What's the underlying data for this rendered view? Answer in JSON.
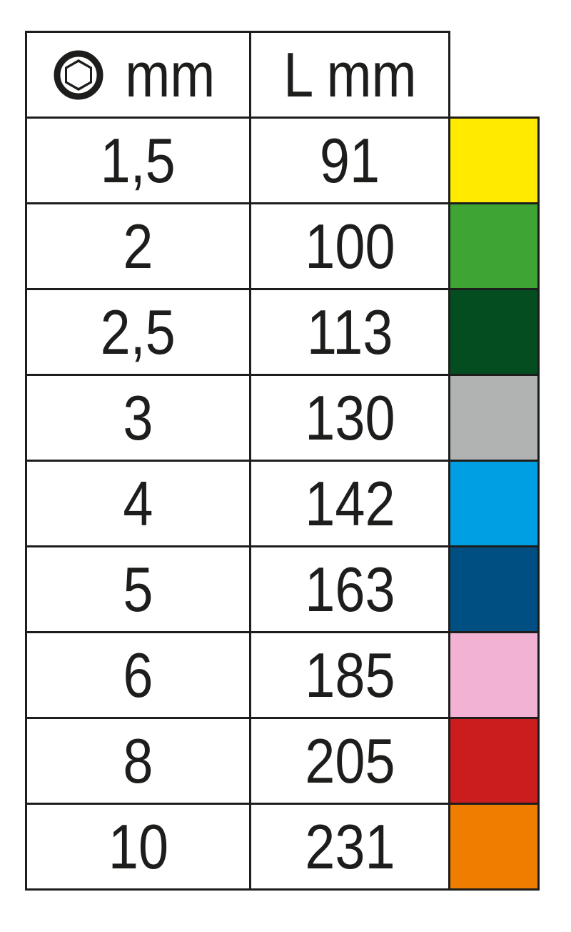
{
  "header": {
    "size_icon": "hexagon-socket-icon",
    "size_label": "mm",
    "length_label": "L mm"
  },
  "rows": [
    {
      "size": "1,5",
      "length": "91",
      "color": "#ffea00"
    },
    {
      "size": "2",
      "length": "100",
      "color": "#3ea535"
    },
    {
      "size": "2,5",
      "length": "113",
      "color": "#034d21"
    },
    {
      "size": "3",
      "length": "130",
      "color": "#b1b3b2"
    },
    {
      "size": "4",
      "length": "142",
      "color": "#009fe3"
    },
    {
      "size": "5",
      "length": "163",
      "color": "#004f83"
    },
    {
      "size": "6",
      "length": "185",
      "color": "#f1b2d3"
    },
    {
      "size": "8",
      "length": "205",
      "color": "#cb1d1d"
    },
    {
      "size": "10",
      "length": "231",
      "color": "#ee7d00"
    }
  ]
}
